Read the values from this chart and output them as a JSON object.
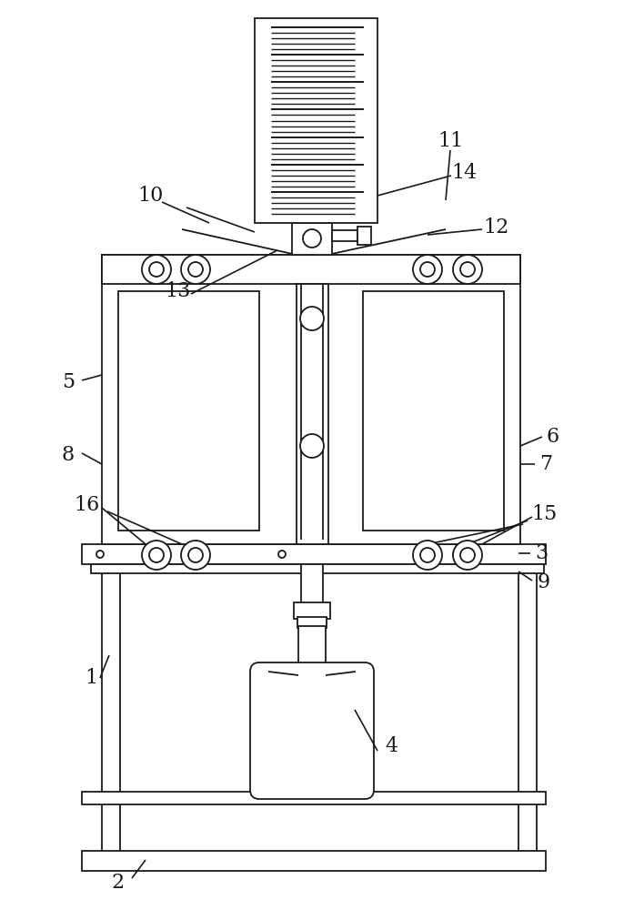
{
  "bg_color": "#ffffff",
  "line_color": "#1a1a1a",
  "lw": 1.3,
  "fig_width": 6.86,
  "fig_height": 10.0,
  "label_fontsize": 16,
  "label_color": "#1a1a1a"
}
